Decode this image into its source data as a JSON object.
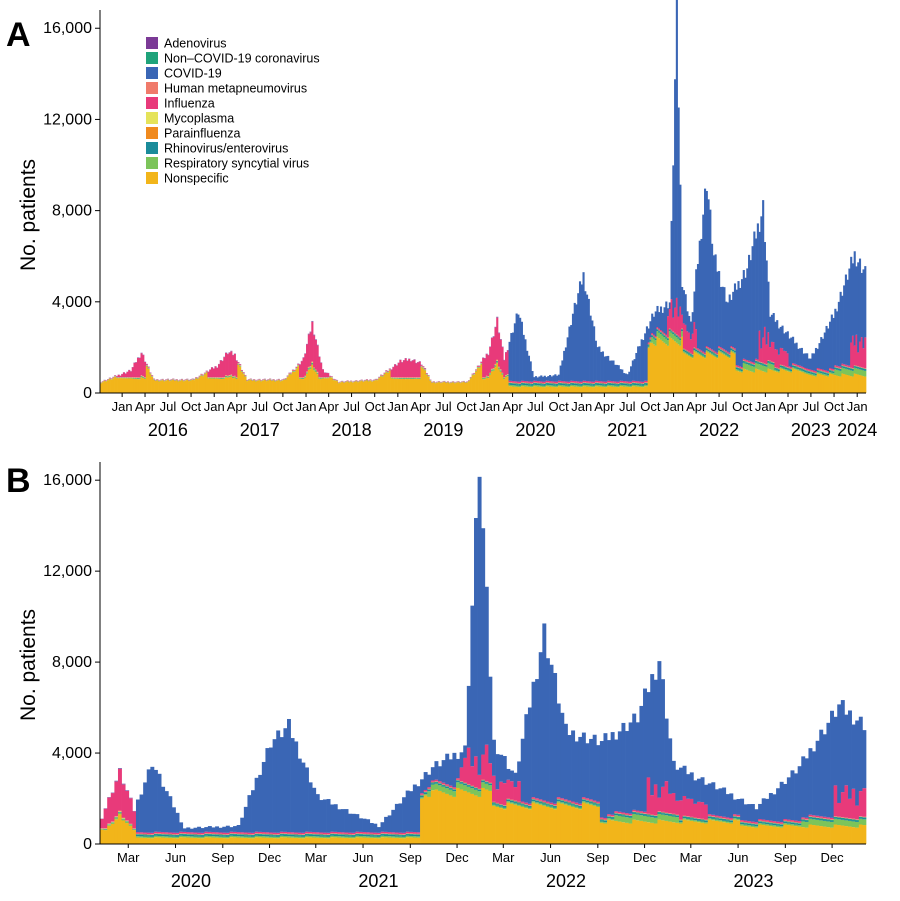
{
  "chart_data": [
    {
      "panel": "A",
      "type": "bar",
      "stacked": true,
      "ylabel": "No. patients",
      "ylim": [
        0,
        16800
      ],
      "y_ticks": [
        "0",
        "4,000",
        "8,000",
        "12,000",
        "16,000"
      ],
      "month_ticks": [
        "Jan",
        "Apr",
        "Jul",
        "Oct",
        "Jan",
        "Apr",
        "Jul",
        "Oct",
        "Jan",
        "Apr",
        "Jul",
        "Oct",
        "Jan",
        "Apr",
        "Jul",
        "Oct",
        "Jan",
        "Apr",
        "Jul",
        "Oct",
        "Jan",
        "Apr",
        "Jul",
        "Oct",
        "Jan",
        "Apr",
        "Jul",
        "Oct",
        "Jan",
        "Apr",
        "Jul",
        "Oct",
        "Jan"
      ],
      "year_labels": [
        "2016",
        "2017",
        "2018",
        "2019",
        "2020",
        "2021",
        "2022",
        "2023",
        "2024"
      ],
      "legend_position": "top-left",
      "legend": [
        {
          "name": "Adenovirus",
          "color": "#7B3A96"
        },
        {
          "name": "Non–COVID-19 coronavirus",
          "color": "#1FA37A"
        },
        {
          "name": "COVID-19",
          "color": "#3A66B5"
        },
        {
          "name": "Human metapneumovirus",
          "color": "#F07A6A"
        },
        {
          "name": "Influenza",
          "color": "#E83A7A"
        },
        {
          "name": "Mycoplasma",
          "color": "#E5E35A"
        },
        {
          "name": "Parainfluenza",
          "color": "#F08A1E"
        },
        {
          "name": "Rhinovirus/enterovirus",
          "color": "#1A8B9A"
        },
        {
          "name": "Respiratory syncytial virus",
          "color": "#7CC45A"
        },
        {
          "name": "Nonspecific",
          "color": "#F2B51A"
        }
      ],
      "x_start": "2015-10-05",
      "x_end": "2024-02-05",
      "week_totals_approx": [
        {
          "date": "2015-10-05",
          "total": 500
        },
        {
          "date": "2016-02-01",
          "total": 1000
        },
        {
          "date": "2016-03-14",
          "total": 1800
        },
        {
          "date": "2016-05-02",
          "total": 600
        },
        {
          "date": "2016-10-03",
          "total": 600
        },
        {
          "date": "2017-01-09",
          "total": 1200
        },
        {
          "date": "2017-02-20",
          "total": 1800
        },
        {
          "date": "2017-03-20",
          "total": 1700
        },
        {
          "date": "2017-05-08",
          "total": 600
        },
        {
          "date": "2017-10-02",
          "total": 600
        },
        {
          "date": "2017-12-18",
          "total": 1500
        },
        {
          "date": "2018-01-22",
          "total": 3100
        },
        {
          "date": "2018-03-05",
          "total": 1000
        },
        {
          "date": "2018-05-07",
          "total": 500
        },
        {
          "date": "2018-10-01",
          "total": 600
        },
        {
          "date": "2019-01-07",
          "total": 1400
        },
        {
          "date": "2019-02-18",
          "total": 1500
        },
        {
          "date": "2019-04-01",
          "total": 1300
        },
        {
          "date": "2019-05-13",
          "total": 500
        },
        {
          "date": "2019-09-30",
          "total": 500
        },
        {
          "date": "2019-12-23",
          "total": 1800
        },
        {
          "date": "2020-01-27",
          "total": 3200
        },
        {
          "date": "2020-02-24",
          "total": 1500
        },
        {
          "date": "2020-04-20",
          "total": 3600
        },
        {
          "date": "2020-06-22",
          "total": 700
        },
        {
          "date": "2020-09-28",
          "total": 800
        },
        {
          "date": "2020-11-23",
          "total": 3500
        },
        {
          "date": "2021-01-04",
          "total": 5200
        },
        {
          "date": "2021-03-01",
          "total": 2000
        },
        {
          "date": "2021-06-28",
          "total": 800
        },
        {
          "date": "2021-08-30",
          "total": 2500
        },
        {
          "date": "2021-10-11",
          "total": 3500
        },
        {
          "date": "2021-12-13",
          "total": 4000
        },
        {
          "date": "2022-01-10",
          "total": 16900
        },
        {
          "date": "2022-01-31",
          "total": 5000
        },
        {
          "date": "2022-03-07",
          "total": 3000
        },
        {
          "date": "2022-05-09",
          "total": 9400
        },
        {
          "date": "2022-06-06",
          "total": 6000
        },
        {
          "date": "2022-08-01",
          "total": 4000
        },
        {
          "date": "2022-10-17",
          "total": 5500
        },
        {
          "date": "2022-12-19",
          "total": 8200
        },
        {
          "date": "2023-01-16",
          "total": 3500
        },
        {
          "date": "2023-04-03",
          "total": 2500
        },
        {
          "date": "2023-06-26",
          "total": 1500
        },
        {
          "date": "2023-09-25",
          "total": 3400
        },
        {
          "date": "2023-12-18",
          "total": 6100
        },
        {
          "date": "2024-02-05",
          "total": 5200
        }
      ]
    },
    {
      "panel": "B",
      "type": "bar",
      "stacked": true,
      "ylabel": "No. patients",
      "ylim": [
        0,
        16800
      ],
      "y_ticks": [
        "0",
        "4,000",
        "8,000",
        "12,000",
        "16,000"
      ],
      "month_ticks": [
        "Mar",
        "Jun",
        "Sep",
        "Dec",
        "Mar",
        "Jun",
        "Sep",
        "Dec",
        "Mar",
        "Jun",
        "Sep",
        "Dec",
        "Mar",
        "Jun",
        "Sep",
        "Dec"
      ],
      "year_labels": [
        "2020",
        "2021",
        "2022",
        "2023"
      ],
      "x_start": "2020-01-06",
      "x_end": "2024-02-05",
      "week_totals_approx": [
        {
          "date": "2020-01-06",
          "total": 1200
        },
        {
          "date": "2020-02-10",
          "total": 3200
        },
        {
          "date": "2020-03-09",
          "total": 1500
        },
        {
          "date": "2020-04-13",
          "total": 3600
        },
        {
          "date": "2020-06-15",
          "total": 700
        },
        {
          "date": "2020-09-28",
          "total": 800
        },
        {
          "date": "2020-11-30",
          "total": 4500
        },
        {
          "date": "2021-01-04",
          "total": 5200
        },
        {
          "date": "2021-03-01",
          "total": 2100
        },
        {
          "date": "2021-06-28",
          "total": 800
        },
        {
          "date": "2021-08-30",
          "total": 2400
        },
        {
          "date": "2021-10-11",
          "total": 3400
        },
        {
          "date": "2021-12-13",
          "total": 4200
        },
        {
          "date": "2022-01-10",
          "total": 16900
        },
        {
          "date": "2022-02-07",
          "total": 4500
        },
        {
          "date": "2022-03-21",
          "total": 3000
        },
        {
          "date": "2022-05-16",
          "total": 9400
        },
        {
          "date": "2022-06-27",
          "total": 5000
        },
        {
          "date": "2022-09-05",
          "total": 4500
        },
        {
          "date": "2022-11-14",
          "total": 5600
        },
        {
          "date": "2022-12-26",
          "total": 8200
        },
        {
          "date": "2023-01-23",
          "total": 3500
        },
        {
          "date": "2023-04-10",
          "total": 2600
        },
        {
          "date": "2023-07-03",
          "total": 1600
        },
        {
          "date": "2023-09-25",
          "total": 3400
        },
        {
          "date": "2023-12-11",
          "total": 6100
        },
        {
          "date": "2024-02-05",
          "total": 5200
        }
      ]
    }
  ]
}
